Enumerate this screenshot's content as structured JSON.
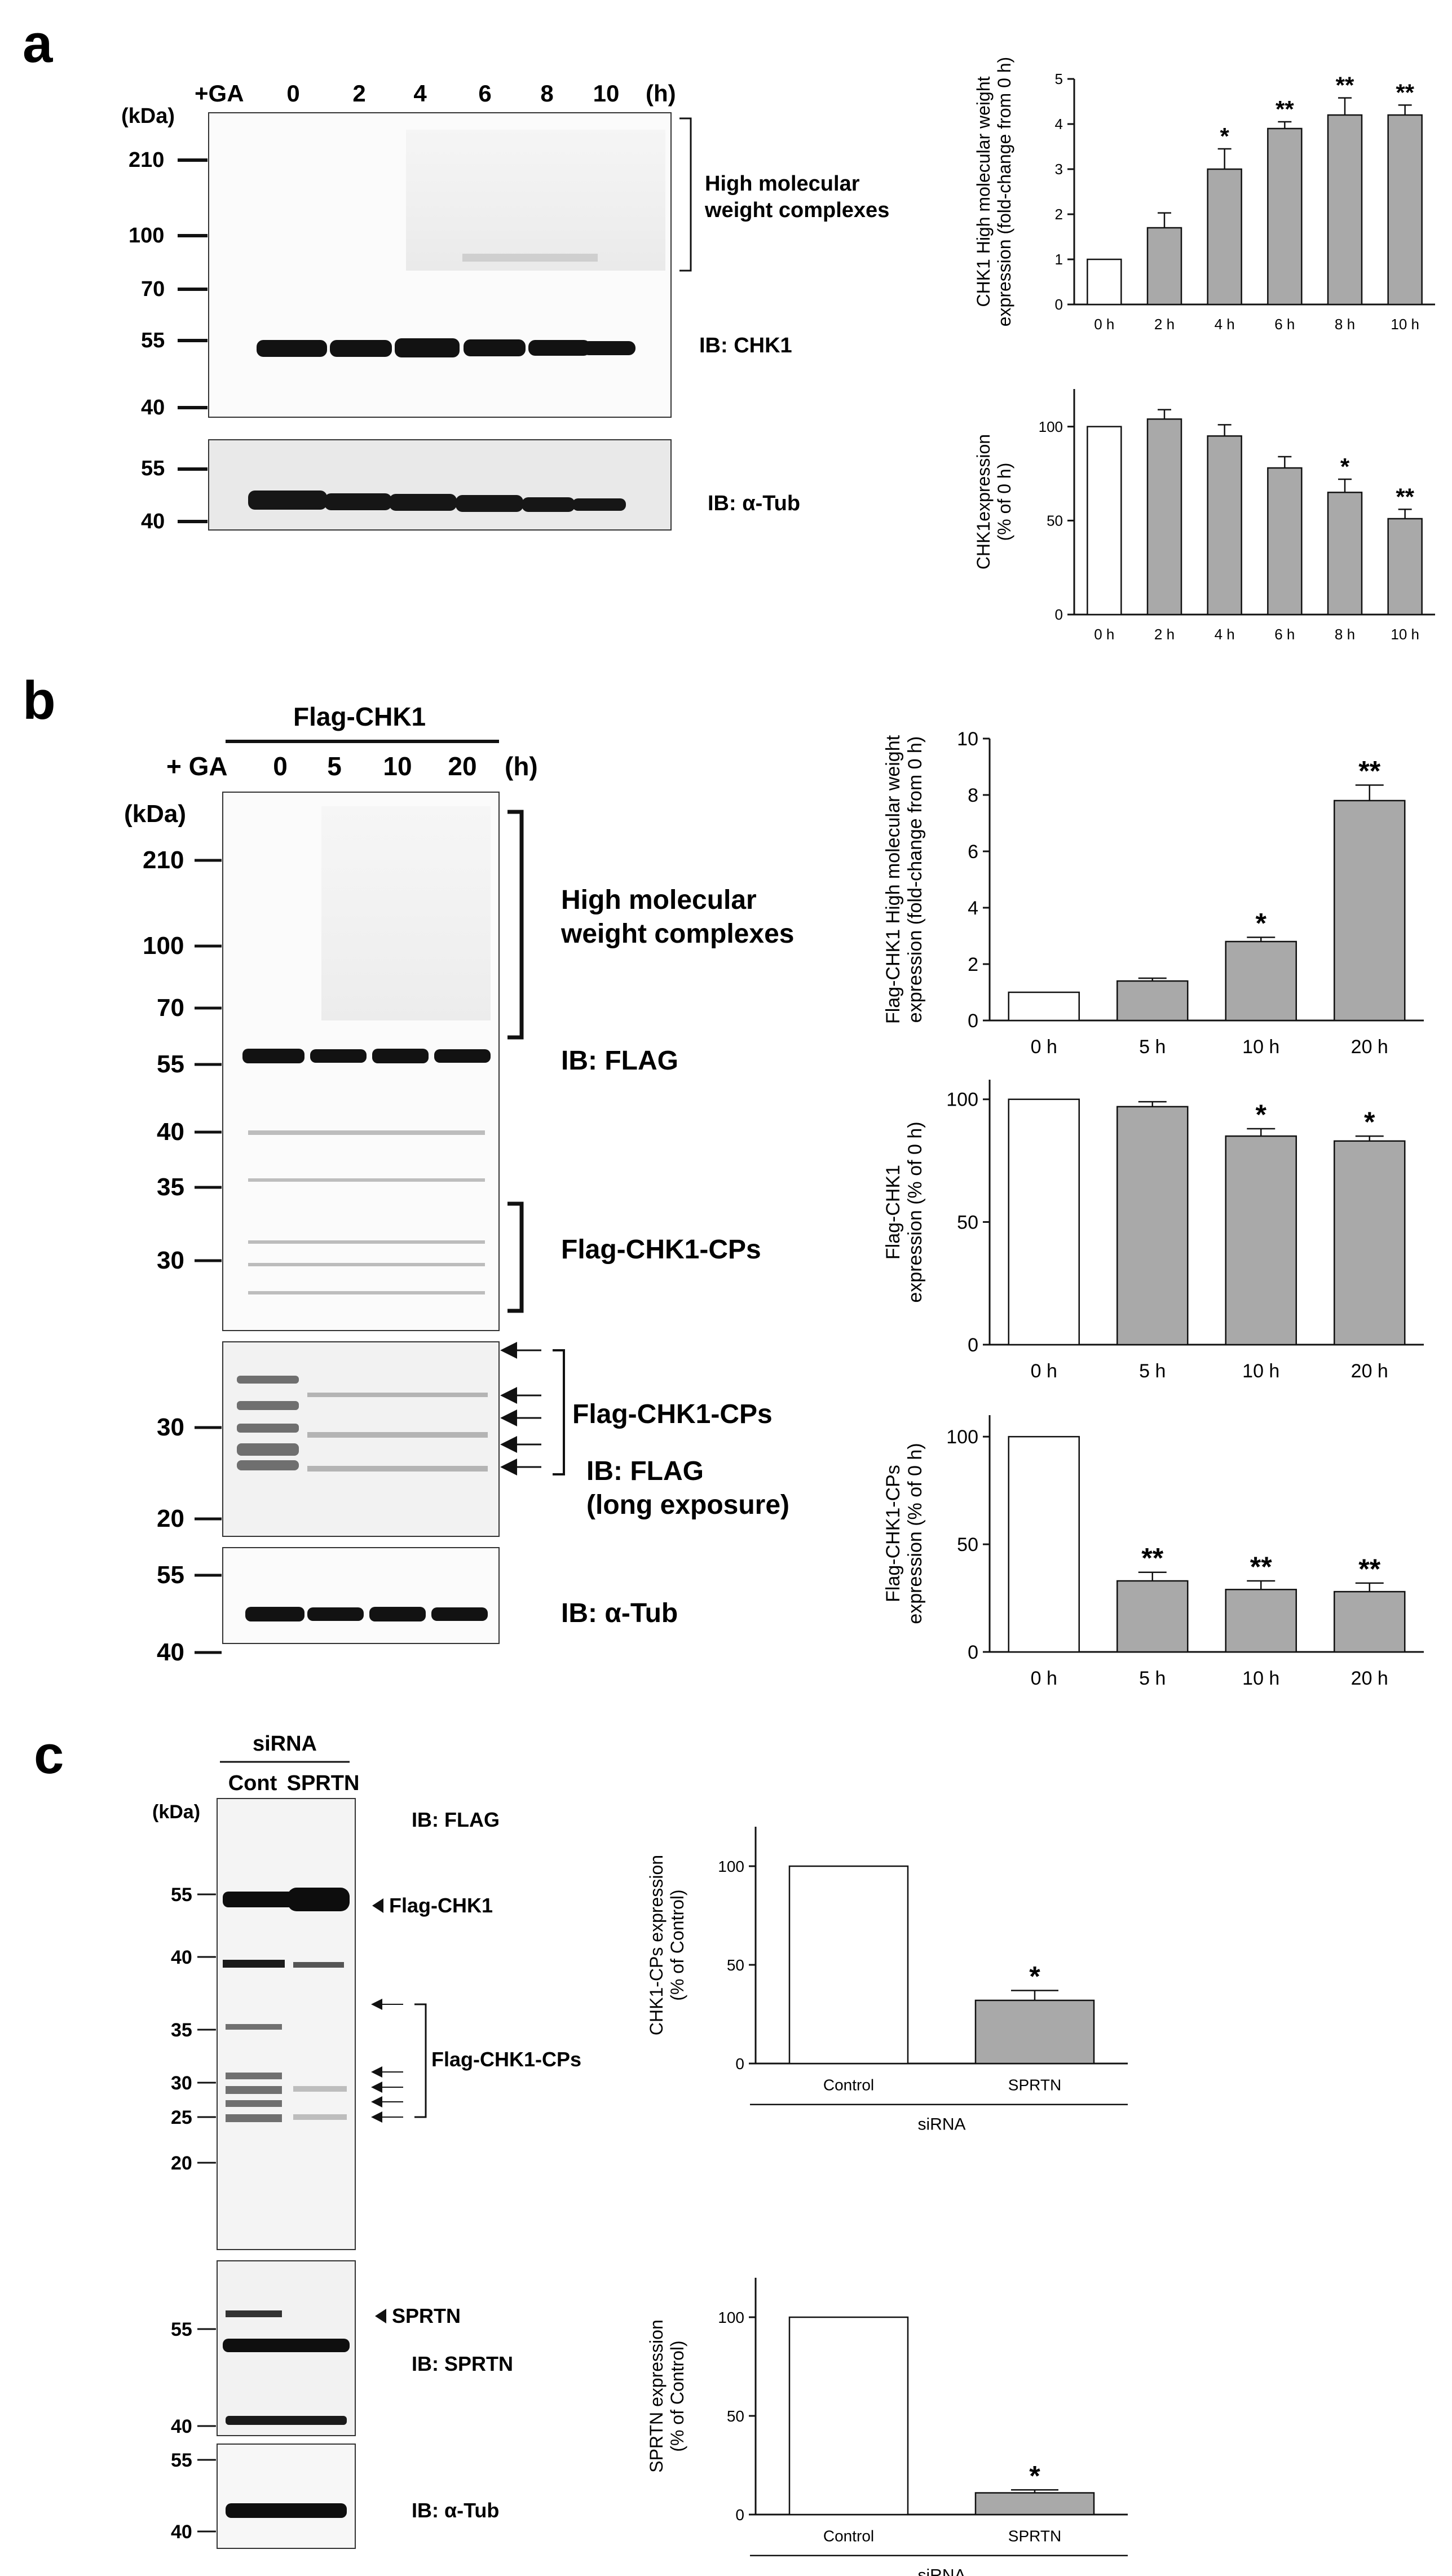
{
  "panels": {
    "a": {
      "letter": "a",
      "lanes_prefix": "+GA",
      "lanes": [
        "0",
        "2",
        "4",
        "6",
        "8",
        "10"
      ],
      "lanes_unit": "(h)",
      "kda_label": "(kDa)",
      "markers_main": [
        "210",
        "100",
        "70",
        "55",
        "40"
      ],
      "markers_tub": [
        "55",
        "40"
      ],
      "bracket_label_1": "High molecular",
      "bracket_label_2": "weight complexes",
      "ib_main": "IB: CHK1",
      "ib_tub": "IB: α-Tub"
    },
    "b": {
      "letter": "b",
      "construct": "Flag-CHK1",
      "lanes_prefix": "+ GA",
      "lanes": [
        "0",
        "5",
        "10",
        "20"
      ],
      "lanes_unit": "(h)",
      "kda_label": "(kDa)",
      "markers_main": [
        "210",
        "100",
        "70",
        "55",
        "40",
        "35",
        "30"
      ],
      "markers_long": [
        "30",
        "20"
      ],
      "markers_tub": [
        "55",
        "40"
      ],
      "bracket_label_1": "High molecular",
      "bracket_label_2": "weight complexes",
      "ib_main": "IB: FLAG",
      "cps_label": "Flag-CHK1-CPs",
      "cps_label_long": "Flag-CHK1-CPs",
      "ib_long_1": "IB: FLAG",
      "ib_long_2": "(long exposure)",
      "ib_tub": "IB: α-Tub"
    },
    "c": {
      "letter": "c",
      "sirna_label": "siRNA",
      "lanes": [
        "Cont",
        "SPRTN"
      ],
      "kda_label": "(kDa)",
      "markers_flag": [
        "55",
        "40",
        "35",
        "30",
        "25",
        "20"
      ],
      "markers_sprtn": [
        "55",
        "40"
      ],
      "markers_tub": [
        "55",
        "40"
      ],
      "ib_flag": "IB: FLAG",
      "flag_chk1": "Flag-CHK1",
      "cps_label": "Flag-CHK1-CPs",
      "sprtn_label": "SPRTN",
      "ib_sprtn": "IB: SPRTN",
      "ib_tub": "IB: α-Tub"
    }
  },
  "chart_data": [
    {
      "id": "a-hmw",
      "type": "bar",
      "ylabel_1": "CHK1 High molecular weight",
      "ylabel_2": "expression (fold-change from 0 h)",
      "categories": [
        "0 h",
        "2 h",
        "4 h",
        "6 h",
        "8 h",
        "10 h"
      ],
      "values": [
        1.0,
        1.7,
        3.0,
        3.9,
        4.2,
        4.2
      ],
      "errors": [
        0,
        0.33,
        0.45,
        0.15,
        0.38,
        0.22
      ],
      "significance": [
        "",
        "",
        "*",
        "**",
        "**",
        "**"
      ],
      "ylim": [
        0,
        5
      ],
      "yticks": [
        "0",
        "1",
        "2",
        "3",
        "4",
        "5"
      ]
    },
    {
      "id": "a-chk1",
      "type": "bar",
      "ylabel_1": "CHK1expression",
      "ylabel_2": "(% of 0 h)",
      "categories": [
        "0 h",
        "2 h",
        "4 h",
        "6 h",
        "8 h",
        "10 h"
      ],
      "values": [
        100,
        104,
        95,
        78,
        65,
        51
      ],
      "errors": [
        0,
        5,
        6,
        6,
        7,
        5
      ],
      "significance": [
        "",
        "",
        "",
        "",
        "*",
        "**"
      ],
      "ylim": [
        0,
        120
      ],
      "yticks": [
        "0",
        "50",
        "100"
      ]
    },
    {
      "id": "b-hmw",
      "type": "bar",
      "ylabel_1": "Flag-CHK1 High molecular weight",
      "ylabel_2": "expression (fold-change from 0 h)",
      "categories": [
        "0 h",
        "5 h",
        "10 h",
        "20 h"
      ],
      "values": [
        1.0,
        1.4,
        2.8,
        7.8
      ],
      "errors": [
        0,
        0.1,
        0.15,
        0.55
      ],
      "significance": [
        "",
        "",
        "*",
        "**"
      ],
      "ylim": [
        0,
        10
      ],
      "yticks": [
        "0",
        "2",
        "4",
        "6",
        "8",
        "10"
      ]
    },
    {
      "id": "b-flag",
      "type": "bar",
      "ylabel_1": "Flag-CHK1",
      "ylabel_2": "expression (% of 0 h)",
      "categories": [
        "0 h",
        "5 h",
        "10 h",
        "20 h"
      ],
      "values": [
        100,
        97,
        85,
        83
      ],
      "errors": [
        0,
        2,
        3,
        2
      ],
      "significance": [
        "",
        "",
        "*",
        "*"
      ],
      "ylim": [
        0,
        108
      ],
      "yticks": [
        "0",
        "50",
        "100"
      ]
    },
    {
      "id": "b-cps",
      "type": "bar",
      "ylabel_1": "Flag-CHK1-CPs",
      "ylabel_2": "expression (% of 0 h)",
      "categories": [
        "0 h",
        "5 h",
        "10 h",
        "20 h"
      ],
      "values": [
        100,
        33,
        29,
        28
      ],
      "errors": [
        0,
        4,
        4,
        4
      ],
      "significance": [
        "",
        "**",
        "**",
        "**"
      ],
      "ylim": [
        0,
        110
      ],
      "yticks": [
        "0",
        "50",
        "100"
      ]
    },
    {
      "id": "c-cps",
      "type": "bar",
      "ylabel_1": "CHK1-CPs expression",
      "ylabel_2": "(% of Control)",
      "categories": [
        "Control",
        "SPRTN"
      ],
      "values": [
        100,
        32
      ],
      "errors": [
        0,
        5
      ],
      "significance": [
        "",
        "*"
      ],
      "xgroup": "siRNA",
      "ylim": [
        0,
        120
      ],
      "yticks": [
        "0",
        "50",
        "100"
      ]
    },
    {
      "id": "c-sprtn",
      "type": "bar",
      "ylabel_1": "SPRTN expression",
      "ylabel_2": "(% of Control)",
      "categories": [
        "Control",
        "SPRTN"
      ],
      "values": [
        100,
        11
      ],
      "errors": [
        0,
        1.5
      ],
      "significance": [
        "",
        "*"
      ],
      "xgroup": "siRNA",
      "ylim": [
        0,
        120
      ],
      "yticks": [
        "0",
        "50",
        "100"
      ]
    }
  ]
}
